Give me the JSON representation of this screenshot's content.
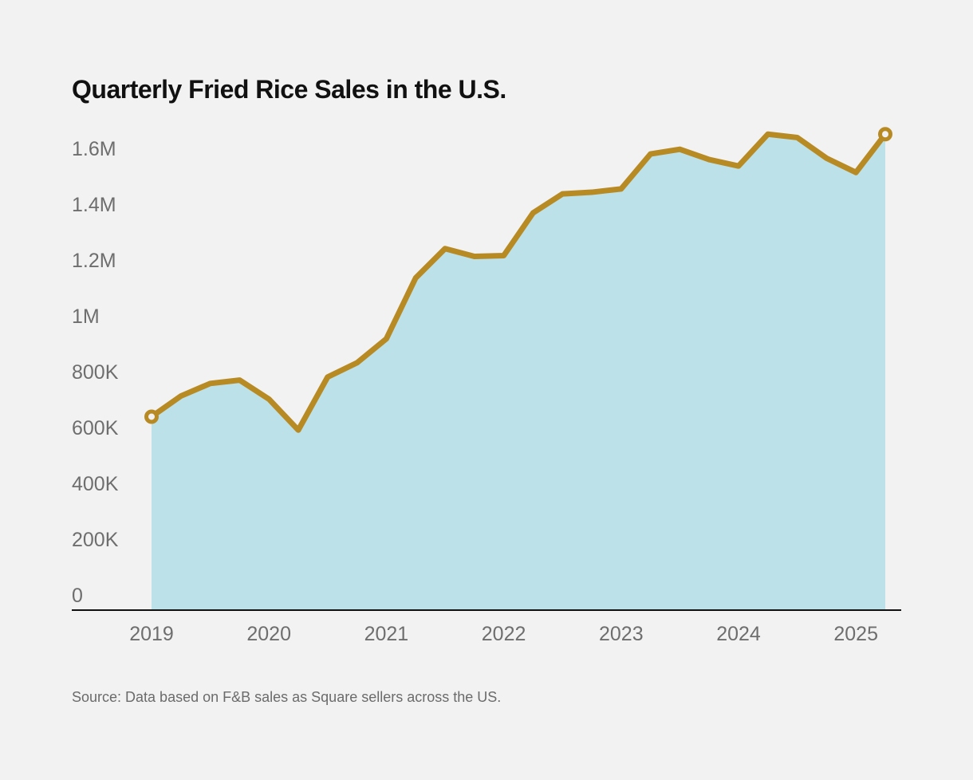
{
  "chart_data": {
    "type": "area",
    "title": "Quarterly Fried Rice Sales in the U.S.",
    "source": "Source: Data based on F&B sales as Square sellers across the US.",
    "xlabel": "",
    "ylabel": "",
    "x": [
      "2019 Q1",
      "2019 Q2",
      "2019 Q3",
      "2019 Q4",
      "2020 Q1",
      "2020 Q2",
      "2020 Q3",
      "2020 Q4",
      "2021 Q1",
      "2021 Q2",
      "2021 Q3",
      "2021 Q4",
      "2022 Q1",
      "2022 Q2",
      "2022 Q3",
      "2022 Q4",
      "2023 Q1",
      "2023 Q2",
      "2023 Q3",
      "2023 Q4",
      "2024 Q1",
      "2024 Q2",
      "2024 Q3",
      "2024 Q4",
      "2025 Q1",
      "2025 Q2"
    ],
    "values": [
      693000,
      767000,
      812000,
      824000,
      756000,
      645000,
      835000,
      886000,
      972000,
      1190000,
      1295000,
      1267000,
      1270000,
      1423000,
      1491000,
      1497000,
      1509000,
      1634000,
      1651000,
      1614000,
      1591000,
      1705000,
      1693000,
      1619000,
      1568000,
      1705000
    ],
    "ylim": [
      0,
      1700000
    ],
    "yticks": [
      0,
      200000,
      400000,
      600000,
      800000,
      1000000,
      1200000,
      1400000,
      1600000
    ],
    "ytick_labels": [
      "0",
      "200K",
      "400K",
      "600K",
      "800K",
      "1M",
      "1.2M",
      "1.4M",
      "1.6M"
    ],
    "xtick_labels": [
      "2019",
      "2020",
      "2021",
      "2022",
      "2023",
      "2024",
      "2025"
    ],
    "grid": false,
    "legend": "none",
    "colors": {
      "line": "#b88a24",
      "area": "#bce1e8",
      "axis": "#111111",
      "background": "#f2f2f2"
    },
    "endpoint_markers": true
  }
}
